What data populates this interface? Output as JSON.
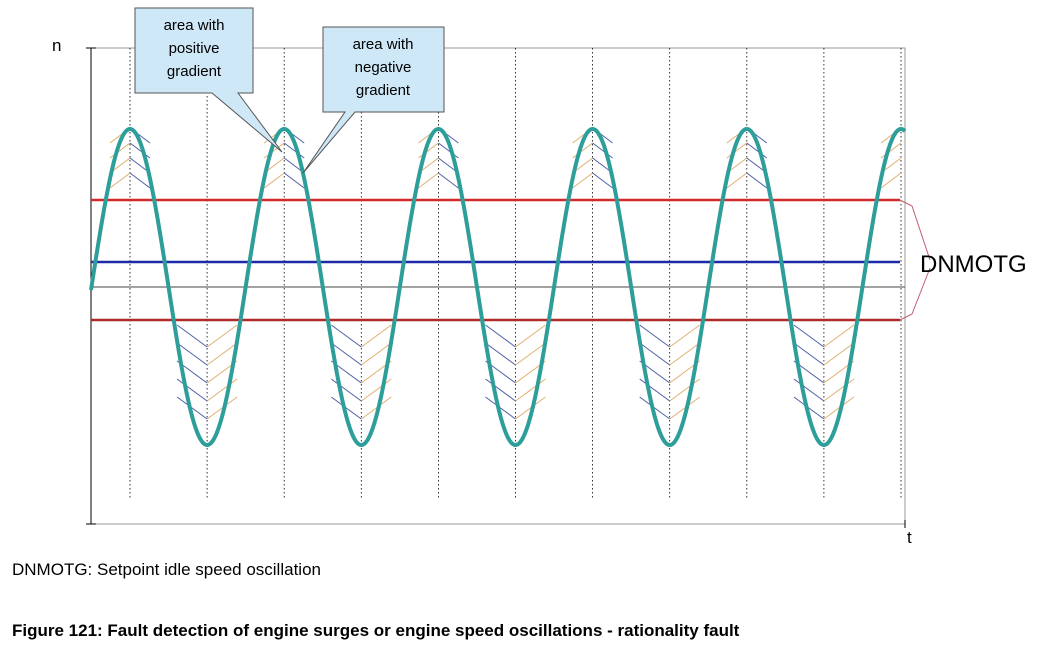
{
  "diagram": {
    "callouts": {
      "positive": [
        "area with",
        "positive",
        "gradient"
      ],
      "negative": [
        "area with",
        "negative",
        "gradient"
      ]
    },
    "y_axis_label": "n",
    "x_axis_label": "t",
    "threshold_label": "DNMOTG",
    "colors": {
      "signal": "#2e9e9a",
      "setpoint": "#1f2aa8",
      "limits": "#d22a2a",
      "hatch_positive": "#e0b070",
      "hatch_negative": "#5060a8",
      "callout_fill": "#cfe8f7",
      "gridline": "#000000"
    }
  },
  "note": "DNMOTG: Setpoint idle speed oscillation",
  "caption": "Figure 121: Fault detection of engine surges or engine speed oscillations - rationality fault"
}
